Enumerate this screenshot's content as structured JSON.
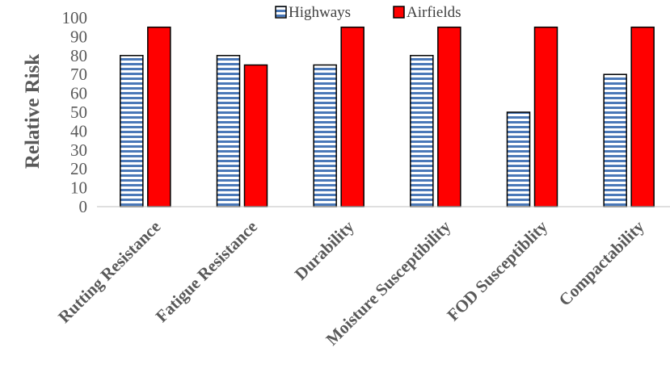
{
  "chart_data": {
    "type": "bar",
    "title": "",
    "xlabel": "",
    "ylabel": "Relative Risk",
    "ylim": [
      0,
      100
    ],
    "yticks": [
      0,
      10,
      20,
      30,
      40,
      50,
      60,
      70,
      80,
      90,
      100
    ],
    "grid": false,
    "legend_position": "top",
    "categories": [
      "Rutting Resistance",
      "Fatigue Resistance",
      "Durability",
      "Moisture Susceptibility",
      "FOD Susceptiblity",
      "Compactability"
    ],
    "series": [
      {
        "name": "Highways",
        "values": [
          80,
          80,
          75,
          80,
          50,
          70
        ],
        "color": "#4a78b8",
        "pattern": "horizontal-stripes"
      },
      {
        "name": "Airfields",
        "values": [
          95,
          75,
          95,
          95,
          95,
          95
        ],
        "color": "#ff0000",
        "pattern": "solid"
      }
    ]
  }
}
